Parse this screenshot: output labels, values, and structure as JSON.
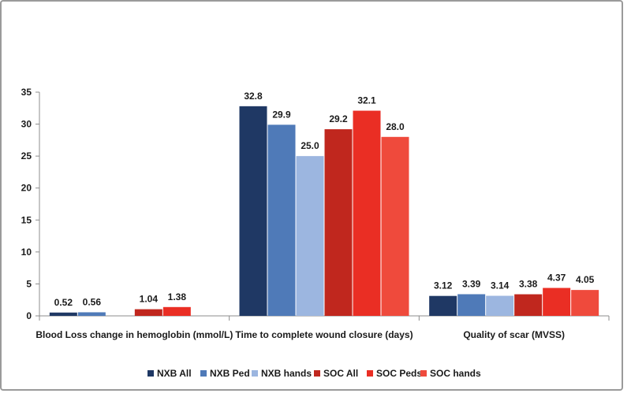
{
  "chart_data": {
    "type": "bar",
    "categories": [
      "Blood Loss change in hemoglobin (mmol/L)",
      "Time to complete wound closure (days)",
      "Quality of scar (MVSS)"
    ],
    "series": [
      {
        "name": "NXB All",
        "color": "#1f3864",
        "values": [
          0.52,
          32.8,
          3.12
        ],
        "labels": [
          "0.52",
          "32.8",
          "3.12"
        ]
      },
      {
        "name": "NXB Ped",
        "color": "#4f7ab8",
        "values": [
          0.56,
          29.9,
          3.39
        ],
        "labels": [
          "0.56",
          "29.9",
          "3.39"
        ]
      },
      {
        "name": "NXB hands",
        "color": "#9cb6e0",
        "values": [
          null,
          25.0,
          3.14
        ],
        "labels": [
          "",
          "25.0",
          "3.14"
        ]
      },
      {
        "name": "SOC All",
        "color": "#c0271e",
        "values": [
          1.04,
          29.2,
          3.38
        ],
        "labels": [
          "1.04",
          "29.2",
          "3.38"
        ]
      },
      {
        "name": "SOC Peds",
        "color": "#ea2e24",
        "values": [
          1.38,
          32.1,
          4.37
        ],
        "labels": [
          "1.38",
          "32.1",
          "4.37"
        ]
      },
      {
        "name": "SOC hands",
        "color": "#ef4a3c",
        "values": [
          null,
          28.0,
          4.05
        ],
        "labels": [
          "",
          "28.0",
          "4.05"
        ]
      }
    ],
    "yticks": [
      0,
      5,
      10,
      15,
      20,
      25,
      30,
      35
    ],
    "ylim": [
      0,
      35
    ],
    "title": "",
    "xlabel": "",
    "ylabel": "",
    "grid": false,
    "legend": "bottom"
  }
}
